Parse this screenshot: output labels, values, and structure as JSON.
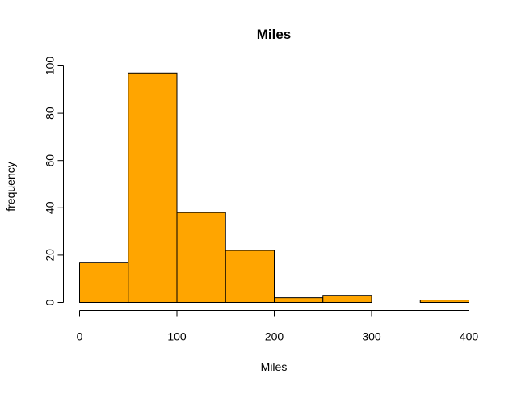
{
  "chart_data": {
    "type": "bar",
    "title": "Miles",
    "xlabel": "Miles",
    "ylabel": "frequency",
    "bins": [
      {
        "start": 0,
        "end": 50,
        "count": 17
      },
      {
        "start": 50,
        "end": 100,
        "count": 97
      },
      {
        "start": 100,
        "end": 150,
        "count": 38
      },
      {
        "start": 150,
        "end": 200,
        "count": 22
      },
      {
        "start": 200,
        "end": 250,
        "count": 2
      },
      {
        "start": 250,
        "end": 300,
        "count": 3
      },
      {
        "start": 300,
        "end": 350,
        "count": 0
      },
      {
        "start": 350,
        "end": 400,
        "count": 1
      }
    ],
    "xlim": [
      0,
      400
    ],
    "ylim": [
      0,
      100
    ],
    "x_ticks": [
      0,
      100,
      200,
      300,
      400
    ],
    "y_ticks": [
      0,
      20,
      40,
      60,
      80,
      100
    ],
    "bar_color": "#FFA500",
    "grid": false,
    "legend": "none"
  }
}
